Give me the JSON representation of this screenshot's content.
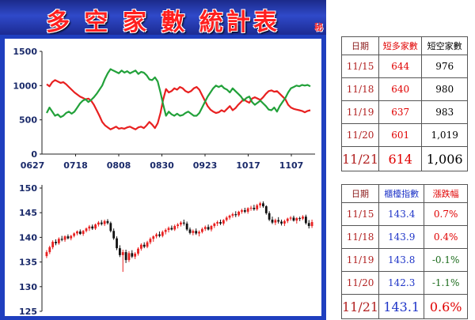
{
  "banner": {
    "title": "多 空 家 數 統計表",
    "mark": "秘"
  },
  "colors": {
    "red": "#e82020",
    "green": "#22a13a",
    "candle_black": "#111111"
  },
  "chart_data": [
    {
      "type": "line",
      "x_ticks": [
        "0627",
        "0718",
        "0808",
        "0830",
        "0923",
        "1017",
        "1107"
      ],
      "ylim": [
        0,
        1500
      ],
      "y_ticks": [
        0,
        500,
        1000,
        1500
      ],
      "grid": false,
      "series": [
        {
          "color": "red",
          "values": [
            1020,
            990,
            1050,
            1080,
            1060,
            1040,
            1050,
            1020,
            980,
            940,
            900,
            870,
            840,
            820,
            800,
            810,
            780,
            720,
            640,
            560,
            470,
            420,
            390,
            360,
            380,
            400,
            370,
            380,
            370,
            390,
            400,
            380,
            360,
            390,
            400,
            380,
            420,
            470,
            430,
            380,
            450,
            600,
            800,
            950,
            900,
            920,
            960,
            940,
            980,
            960,
            920,
            900,
            920,
            960,
            980,
            940,
            860,
            780,
            700,
            650,
            620,
            600,
            610,
            640,
            620,
            660,
            700,
            640,
            670,
            720,
            760,
            800,
            770,
            750,
            810,
            830,
            810,
            790,
            830,
            880,
            920,
            930,
            910,
            920,
            880,
            840,
            800,
            720,
            680,
            660,
            650,
            640,
            630,
            610,
            630,
            640
          ]
        },
        {
          "color": "green",
          "values": [
            600,
            680,
            620,
            560,
            580,
            540,
            560,
            600,
            620,
            590,
            620,
            680,
            740,
            780,
            800,
            760,
            790,
            830,
            880,
            940,
            1000,
            1100,
            1180,
            1240,
            1220,
            1200,
            1180,
            1220,
            1190,
            1210,
            1180,
            1200,
            1220,
            1170,
            1200,
            1190,
            1150,
            1090,
            1080,
            1120,
            1060,
            900,
            720,
            560,
            620,
            580,
            560,
            590,
            560,
            570,
            600,
            620,
            590,
            560,
            560,
            600,
            680,
            760,
            840,
            900,
            960,
            1000,
            980,
            1000,
            960,
            940,
            900,
            960,
            920,
            880,
            840,
            780,
            820,
            840,
            760,
            720,
            750,
            780,
            740,
            700,
            650,
            640,
            680,
            620,
            700,
            760,
            820,
            900,
            960,
            980,
            1000,
            990,
            1010,
            1000,
            1010,
            990
          ]
        }
      ]
    },
    {
      "type": "candlestick",
      "ylim": [
        125,
        150
      ],
      "y_ticks": [
        125,
        130,
        135,
        140,
        145,
        150
      ],
      "grid": false,
      "candles": [
        [
          136.2,
          137.4,
          135.8,
          137
        ],
        [
          137,
          138.3,
          136.6,
          138
        ],
        [
          138,
          139.4,
          137.6,
          139.1
        ],
        [
          139.1,
          139.6,
          138.4,
          138.8
        ],
        [
          138.8,
          140,
          138.5,
          139.7
        ],
        [
          139.7,
          140.3,
          139.2,
          139.5
        ],
        [
          139.5,
          140.4,
          139.1,
          140.2
        ],
        [
          140.2,
          140.6,
          139.6,
          139.8
        ],
        [
          139.8,
          140.5,
          139.4,
          140.3
        ],
        [
          140.3,
          141,
          140,
          140.8
        ],
        [
          140.8,
          141.4,
          140.4,
          141.2
        ],
        [
          141.2,
          141.6,
          140.5,
          140.7
        ],
        [
          140.7,
          141.5,
          140.3,
          141.3
        ],
        [
          141.3,
          142,
          141,
          141.8
        ],
        [
          141.8,
          142.5,
          141.3,
          142.2
        ],
        [
          142.2,
          142.6,
          141.5,
          141.8
        ],
        [
          141.8,
          142.8,
          141.5,
          142.6
        ],
        [
          142.6,
          143.3,
          142.2,
          143
        ],
        [
          143,
          143.5,
          142.4,
          142.7
        ],
        [
          142.7,
          143.6,
          142.3,
          143.3
        ],
        [
          143.3,
          143.7,
          142.6,
          142.9
        ],
        [
          142.9,
          143.2,
          141,
          141.3
        ],
        [
          141.3,
          141.8,
          139.5,
          139.8
        ],
        [
          139.8,
          140.2,
          137.4,
          137.8
        ],
        [
          137.8,
          138.4,
          136,
          136.4
        ],
        [
          136.4,
          137.5,
          133,
          137
        ],
        [
          137,
          137.5,
          134.8,
          135.4
        ],
        [
          135.4,
          137.2,
          135,
          136.8
        ],
        [
          136.8,
          137.4,
          135.8,
          136.1
        ],
        [
          136.1,
          137,
          135.6,
          136.7
        ],
        [
          136.7,
          138,
          136.3,
          137.7
        ],
        [
          137.7,
          138.8,
          137.3,
          138.5
        ],
        [
          138.5,
          139,
          137.8,
          138.1
        ],
        [
          138.1,
          139.3,
          137.8,
          139
        ],
        [
          139,
          140,
          138.6,
          139.7
        ],
        [
          139.7,
          140.4,
          139.1,
          140.2
        ],
        [
          140.2,
          140.9,
          139.8,
          140.6
        ],
        [
          140.6,
          141.2,
          140,
          140.3
        ],
        [
          140.3,
          141.4,
          140,
          141.1
        ],
        [
          141.1,
          141.8,
          140.6,
          141.5
        ],
        [
          141.5,
          142.2,
          141,
          141.9
        ],
        [
          141.9,
          142.4,
          141.4,
          141.6
        ],
        [
          141.6,
          142.6,
          141.3,
          142.3
        ],
        [
          142.3,
          142.9,
          141.8,
          142.6
        ],
        [
          142.6,
          143.3,
          142.2,
          143
        ],
        [
          143,
          143.6,
          142.4,
          142.8
        ],
        [
          142.8,
          143.2,
          141.3,
          141.6
        ],
        [
          141.6,
          142,
          140.6,
          140.9
        ],
        [
          140.9,
          141.6,
          140.4,
          141.3
        ],
        [
          141.3,
          141.8,
          140.5,
          140.8
        ],
        [
          140.8,
          141.4,
          140.2,
          141.1
        ],
        [
          141.1,
          142,
          140.8,
          141.7
        ],
        [
          141.7,
          142.4,
          141.3,
          142.1
        ],
        [
          142.1,
          142.6,
          141.4,
          141.6
        ],
        [
          141.6,
          142.5,
          141.2,
          142.3
        ],
        [
          142.3,
          143,
          141.9,
          142.8
        ],
        [
          142.8,
          143.4,
          142.3,
          143.1
        ],
        [
          143.1,
          143.6,
          142.5,
          142.8
        ],
        [
          142.8,
          143.7,
          142.4,
          143.5
        ],
        [
          143.5,
          144.3,
          143.2,
          144
        ],
        [
          144,
          144.6,
          143.6,
          144.4
        ],
        [
          144.4,
          145,
          144,
          144.7
        ],
        [
          144.7,
          145.3,
          144.1,
          144.5
        ],
        [
          144.5,
          145.4,
          144.2,
          145.2
        ],
        [
          145.2,
          145.8,
          144.8,
          145.5
        ],
        [
          145.5,
          146,
          144.9,
          145.2
        ],
        [
          145.2,
          146.1,
          144.8,
          145.9
        ],
        [
          145.9,
          146.4,
          145.4,
          146
        ],
        [
          146,
          146.6,
          145.4,
          145.7
        ],
        [
          145.7,
          146.8,
          145.4,
          146.5
        ],
        [
          146.5,
          147.2,
          146,
          146.9
        ],
        [
          146.9,
          147.3,
          146,
          146.3
        ],
        [
          146.3,
          146.5,
          144.6,
          144.9
        ],
        [
          144.9,
          145.3,
          143.3,
          143.6
        ],
        [
          143.6,
          144.2,
          142.7,
          143
        ],
        [
          143,
          143.8,
          142.5,
          143.5
        ],
        [
          143.5,
          144.1,
          142.8,
          143.2
        ],
        [
          143.2,
          143.6,
          142.4,
          142.8
        ],
        [
          142.8,
          143.6,
          142.3,
          143.3
        ],
        [
          143.3,
          144,
          142.9,
          143.8
        ],
        [
          143.8,
          144.3,
          143.4,
          144
        ],
        [
          144,
          144.4,
          143.2,
          143.4
        ],
        [
          143.4,
          144.1,
          142.8,
          143.9
        ],
        [
          143.9,
          144.2,
          143.3,
          143.8
        ],
        [
          143.8,
          144.5,
          143.5,
          144.2
        ],
        [
          144.2,
          144.6,
          142.6,
          142.9
        ],
        [
          142.9,
          143.5,
          141.8,
          142.3
        ],
        [
          142.3,
          143.6,
          141.9,
          143.1
        ]
      ]
    }
  ],
  "table_top": {
    "headers": [
      "日期",
      "短多家數",
      "短空家數"
    ],
    "rows": [
      [
        "11/15",
        "644",
        "976"
      ],
      [
        "11/18",
        "640",
        "980"
      ],
      [
        "11/19",
        "637",
        "983"
      ],
      [
        "11/20",
        "601",
        "1,019"
      ],
      [
        "11/21",
        "614",
        "1,006"
      ]
    ]
  },
  "table_bottom": {
    "headers": [
      "日期",
      "櫃檯指數",
      "漲跌幅"
    ],
    "rows": [
      [
        "11/15",
        "143.4",
        "0.7%"
      ],
      [
        "11/18",
        "143.9",
        "0.4%"
      ],
      [
        "11/19",
        "143.8",
        "-0.1%"
      ],
      [
        "11/20",
        "142.3",
        "-1.1%"
      ],
      [
        "11/21",
        "143.1",
        "0.6%"
      ]
    ]
  }
}
